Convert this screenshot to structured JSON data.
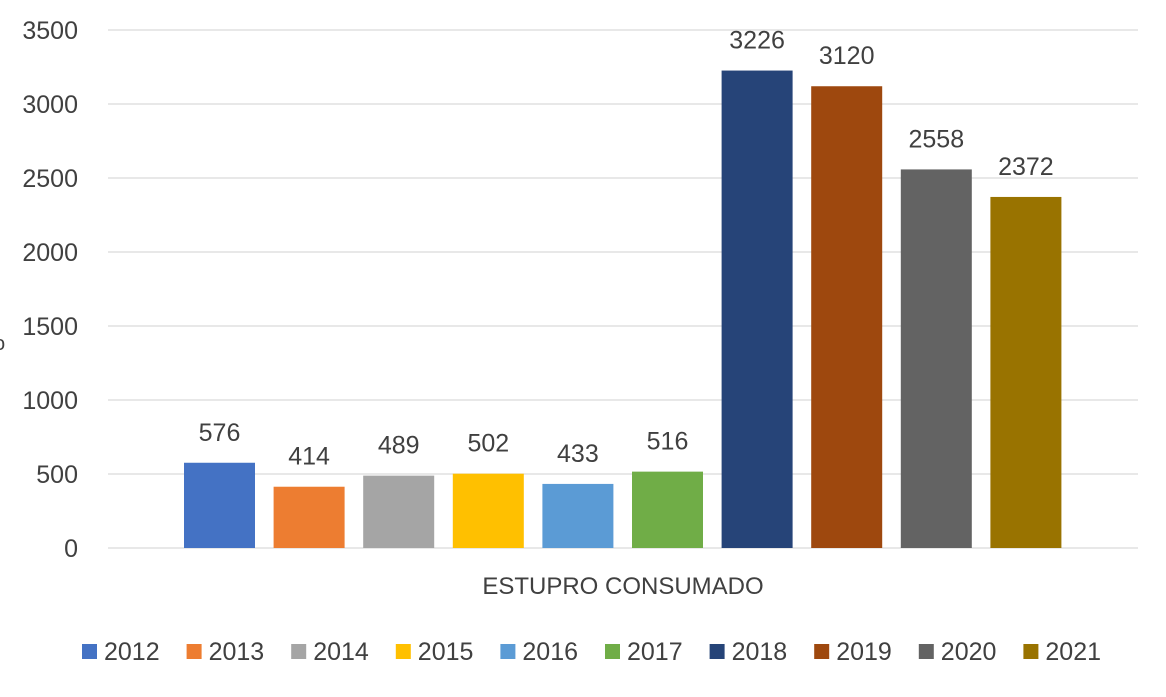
{
  "chart_data": {
    "type": "bar",
    "categories": [
      "ESTUPRO CONSUMADO"
    ],
    "series": [
      {
        "name": "2012",
        "values": [
          576
        ],
        "color": "#4472C4"
      },
      {
        "name": "2013",
        "values": [
          414
        ],
        "color": "#ED7D31"
      },
      {
        "name": "2014",
        "values": [
          489
        ],
        "color": "#A5A5A5"
      },
      {
        "name": "2015",
        "values": [
          502
        ],
        "color": "#FFC000"
      },
      {
        "name": "2016",
        "values": [
          433
        ],
        "color": "#5B9BD5"
      },
      {
        "name": "2017",
        "values": [
          516
        ],
        "color": "#70AD47"
      },
      {
        "name": "2018",
        "values": [
          3226
        ],
        "color": "#264478"
      },
      {
        "name": "2019",
        "values": [
          3120
        ],
        "color": "#9E480E"
      },
      {
        "name": "2020",
        "values": [
          2558
        ],
        "color": "#636363"
      },
      {
        "name": "2021",
        "values": [
          2372
        ],
        "color": "#997300"
      }
    ],
    "ylim": [
      0,
      3500
    ],
    "yticks": [
      0,
      500,
      1000,
      1500,
      2000,
      2500,
      3000,
      3500
    ],
    "grid": true,
    "legend": "bottom",
    "ylabel_fragment": "o"
  }
}
